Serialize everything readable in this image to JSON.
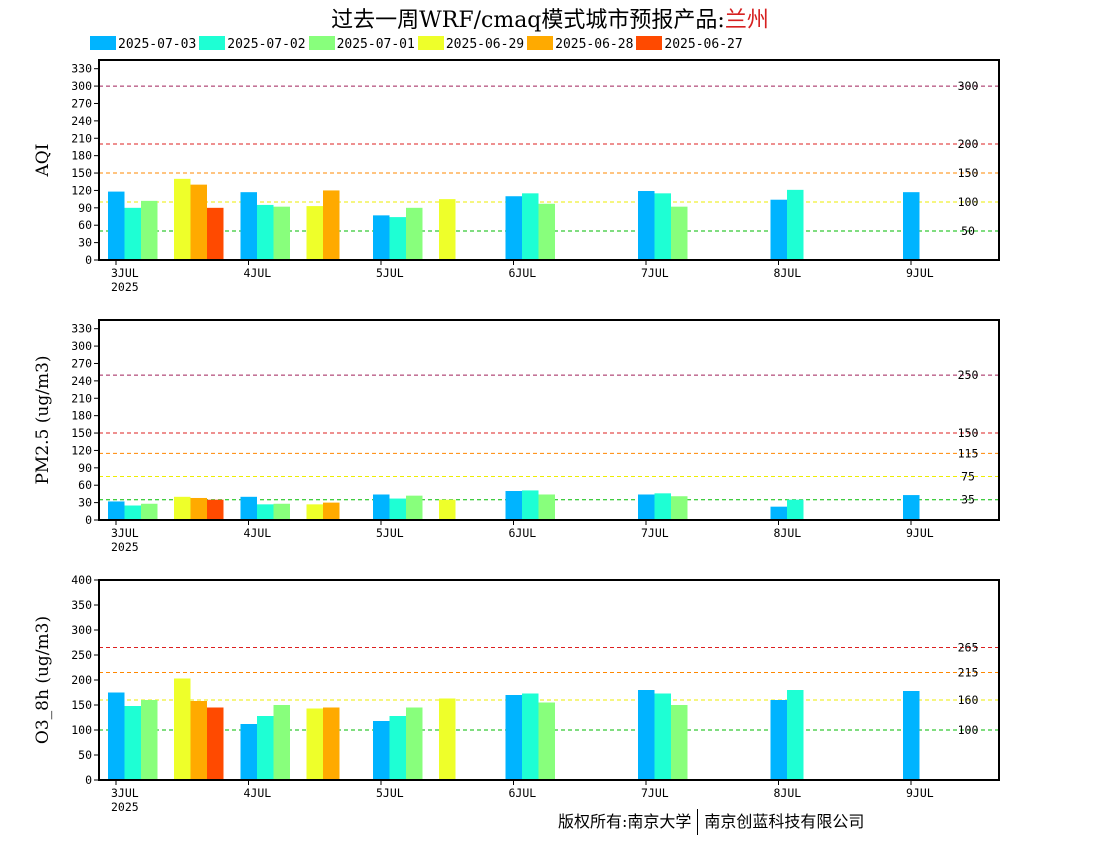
{
  "header": {
    "title_prefix": "过去一周WRF/cmaq模式城市预报产品:",
    "city": "兰州"
  },
  "legend": [
    {
      "label": "2025-07-03",
      "color": "#00b4ff"
    },
    {
      "label": "2025-07-02",
      "color": "#1effd4"
    },
    {
      "label": "2025-07-01",
      "color": "#88ff7c"
    },
    {
      "label": "2025-06-29",
      "color": "#eeff2a"
    },
    {
      "label": "2025-06-28",
      "color": "#ffaa00"
    },
    {
      "label": "2025-06-27",
      "color": "#ff4a00"
    }
  ],
  "footer": {
    "copyright_left": "版权所有:南京大学",
    "copyright_right": "南京创蓝科技有限公司"
  },
  "chart_data": [
    {
      "type": "bar",
      "ylabel": "AQI",
      "ylim": [
        0,
        345
      ],
      "yticks": [
        0,
        30,
        60,
        90,
        120,
        150,
        180,
        210,
        240,
        270,
        300,
        330
      ],
      "xlim": [
        0,
        6.7
      ],
      "xticks": [
        {
          "x": 0,
          "label": "3JUL",
          "sub": "2025"
        },
        {
          "x": 1,
          "label": "4JUL",
          "sub": ""
        },
        {
          "x": 2,
          "label": "5JUL",
          "sub": ""
        },
        {
          "x": 3,
          "label": "6JUL",
          "sub": ""
        },
        {
          "x": 4,
          "label": "7JUL",
          "sub": ""
        },
        {
          "x": 5,
          "label": "8JUL",
          "sub": ""
        },
        {
          "x": 6,
          "label": "9JUL",
          "sub": ""
        }
      ],
      "thresholds": [
        {
          "value": 300,
          "label": "300",
          "color": "#a0205a"
        },
        {
          "value": 200,
          "label": "200",
          "color": "#dd2020"
        },
        {
          "value": 150,
          "label": "150",
          "color": "#ff8800"
        },
        {
          "value": 100,
          "label": "100",
          "color": "#eeee00"
        },
        {
          "value": 50,
          "label": "50",
          "color": "#00bb00"
        }
      ],
      "bars": [
        {
          "x": 0,
          "series": "2025-07-03",
          "value": 118
        },
        {
          "x": 0,
          "series": "2025-07-02",
          "value": 90
        },
        {
          "x": 0,
          "series": "2025-07-01",
          "value": 102
        },
        {
          "x": 0,
          "series": "2025-06-29",
          "value": 140
        },
        {
          "x": 0,
          "series": "2025-06-28",
          "value": 130
        },
        {
          "x": 0,
          "series": "2025-06-27",
          "value": 90
        },
        {
          "x": 1,
          "series": "2025-07-03",
          "value": 117
        },
        {
          "x": 1,
          "series": "2025-07-02",
          "value": 95
        },
        {
          "x": 1,
          "series": "2025-07-01",
          "value": 92
        },
        {
          "x": 1,
          "series": "2025-06-29",
          "value": 93
        },
        {
          "x": 1,
          "series": "2025-06-28",
          "value": 120
        },
        {
          "x": 2,
          "series": "2025-07-03",
          "value": 77
        },
        {
          "x": 2,
          "series": "2025-07-02",
          "value": 74
        },
        {
          "x": 2,
          "series": "2025-07-01",
          "value": 90
        },
        {
          "x": 2,
          "series": "2025-06-29",
          "value": 105
        },
        {
          "x": 3,
          "series": "2025-07-03",
          "value": 110
        },
        {
          "x": 3,
          "series": "2025-07-02",
          "value": 115
        },
        {
          "x": 3,
          "series": "2025-07-01",
          "value": 97
        },
        {
          "x": 4,
          "series": "2025-07-03",
          "value": 119
        },
        {
          "x": 4,
          "series": "2025-07-02",
          "value": 115
        },
        {
          "x": 4,
          "series": "2025-07-01",
          "value": 92
        },
        {
          "x": 5,
          "series": "2025-07-03",
          "value": 104
        },
        {
          "x": 5,
          "series": "2025-07-02",
          "value": 121
        },
        {
          "x": 6,
          "series": "2025-07-03",
          "value": 117
        }
      ]
    },
    {
      "type": "bar",
      "ylabel": "PM2.5 (ug/m3)",
      "ylim": [
        0,
        345
      ],
      "yticks": [
        0,
        30,
        60,
        90,
        120,
        150,
        180,
        210,
        240,
        270,
        300,
        330
      ],
      "xlim": [
        0,
        6.7
      ],
      "xticks": [
        {
          "x": 0,
          "label": "3JUL",
          "sub": "2025"
        },
        {
          "x": 1,
          "label": "4JUL",
          "sub": ""
        },
        {
          "x": 2,
          "label": "5JUL",
          "sub": ""
        },
        {
          "x": 3,
          "label": "6JUL",
          "sub": ""
        },
        {
          "x": 4,
          "label": "7JUL",
          "sub": ""
        },
        {
          "x": 5,
          "label": "8JUL",
          "sub": ""
        },
        {
          "x": 6,
          "label": "9JUL",
          "sub": ""
        }
      ],
      "thresholds": [
        {
          "value": 250,
          "label": "250",
          "color": "#a0205a"
        },
        {
          "value": 150,
          "label": "150",
          "color": "#dd2020"
        },
        {
          "value": 115,
          "label": "115",
          "color": "#ff8800"
        },
        {
          "value": 75,
          "label": "75",
          "color": "#eeee00"
        },
        {
          "value": 35,
          "label": "35",
          "color": "#00bb00"
        }
      ],
      "bars": [
        {
          "x": 0,
          "series": "2025-07-03",
          "value": 32
        },
        {
          "x": 0,
          "series": "2025-07-02",
          "value": 25
        },
        {
          "x": 0,
          "series": "2025-07-01",
          "value": 28
        },
        {
          "x": 0,
          "series": "2025-06-29",
          "value": 40
        },
        {
          "x": 0,
          "series": "2025-06-28",
          "value": 38
        },
        {
          "x": 0,
          "series": "2025-06-27",
          "value": 35
        },
        {
          "x": 1,
          "series": "2025-07-03",
          "value": 40
        },
        {
          "x": 1,
          "series": "2025-07-02",
          "value": 27
        },
        {
          "x": 1,
          "series": "2025-07-01",
          "value": 28
        },
        {
          "x": 1,
          "series": "2025-06-29",
          "value": 27
        },
        {
          "x": 1,
          "series": "2025-06-28",
          "value": 30
        },
        {
          "x": 2,
          "series": "2025-07-03",
          "value": 44
        },
        {
          "x": 2,
          "series": "2025-07-02",
          "value": 37
        },
        {
          "x": 2,
          "series": "2025-07-01",
          "value": 42
        },
        {
          "x": 2,
          "series": "2025-06-29",
          "value": 35
        },
        {
          "x": 3,
          "series": "2025-07-03",
          "value": 50
        },
        {
          "x": 3,
          "series": "2025-07-02",
          "value": 51
        },
        {
          "x": 3,
          "series": "2025-07-01",
          "value": 44
        },
        {
          "x": 4,
          "series": "2025-07-03",
          "value": 44
        },
        {
          "x": 4,
          "series": "2025-07-02",
          "value": 46
        },
        {
          "x": 4,
          "series": "2025-07-01",
          "value": 41
        },
        {
          "x": 5,
          "series": "2025-07-03",
          "value": 23
        },
        {
          "x": 5,
          "series": "2025-07-02",
          "value": 35
        },
        {
          "x": 6,
          "series": "2025-07-03",
          "value": 43
        }
      ]
    },
    {
      "type": "bar",
      "ylabel": "O3_8h (ug/m3)",
      "ylim": [
        0,
        400
      ],
      "yticks": [
        0,
        50,
        100,
        150,
        200,
        250,
        300,
        350,
        400
      ],
      "xlim": [
        0,
        6.7
      ],
      "xticks": [
        {
          "x": 0,
          "label": "3JUL",
          "sub": "2025"
        },
        {
          "x": 1,
          "label": "4JUL",
          "sub": ""
        },
        {
          "x": 2,
          "label": "5JUL",
          "sub": ""
        },
        {
          "x": 3,
          "label": "6JUL",
          "sub": ""
        },
        {
          "x": 4,
          "label": "7JUL",
          "sub": ""
        },
        {
          "x": 5,
          "label": "8JUL",
          "sub": ""
        },
        {
          "x": 6,
          "label": "9JUL",
          "sub": ""
        }
      ],
      "thresholds": [
        {
          "value": 265,
          "label": "265",
          "color": "#dd2020"
        },
        {
          "value": 215,
          "label": "215",
          "color": "#ff8800"
        },
        {
          "value": 160,
          "label": "160",
          "color": "#eeee00"
        },
        {
          "value": 100,
          "label": "100",
          "color": "#00bb00"
        }
      ],
      "bars": [
        {
          "x": 0,
          "series": "2025-07-03",
          "value": 175
        },
        {
          "x": 0,
          "series": "2025-07-02",
          "value": 148
        },
        {
          "x": 0,
          "series": "2025-07-01",
          "value": 160
        },
        {
          "x": 0,
          "series": "2025-06-29",
          "value": 203
        },
        {
          "x": 0,
          "series": "2025-06-28",
          "value": 158
        },
        {
          "x": 0,
          "series": "2025-06-27",
          "value": 145
        },
        {
          "x": 1,
          "series": "2025-07-03",
          "value": 112
        },
        {
          "x": 1,
          "series": "2025-07-02",
          "value": 128
        },
        {
          "x": 1,
          "series": "2025-07-01",
          "value": 150
        },
        {
          "x": 1,
          "series": "2025-06-29",
          "value": 143
        },
        {
          "x": 1,
          "series": "2025-06-28",
          "value": 145
        },
        {
          "x": 2,
          "series": "2025-07-03",
          "value": 118
        },
        {
          "x": 2,
          "series": "2025-07-02",
          "value": 128
        },
        {
          "x": 2,
          "series": "2025-07-01",
          "value": 145
        },
        {
          "x": 2,
          "series": "2025-06-29",
          "value": 163
        },
        {
          "x": 3,
          "series": "2025-07-03",
          "value": 170
        },
        {
          "x": 3,
          "series": "2025-07-02",
          "value": 173
        },
        {
          "x": 3,
          "series": "2025-07-01",
          "value": 155
        },
        {
          "x": 4,
          "series": "2025-07-03",
          "value": 180
        },
        {
          "x": 4,
          "series": "2025-07-02",
          "value": 173
        },
        {
          "x": 4,
          "series": "2025-07-01",
          "value": 150
        },
        {
          "x": 5,
          "series": "2025-07-03",
          "value": 160
        },
        {
          "x": 5,
          "series": "2025-07-02",
          "value": 180
        },
        {
          "x": 6,
          "series": "2025-07-03",
          "value": 178
        }
      ]
    }
  ]
}
